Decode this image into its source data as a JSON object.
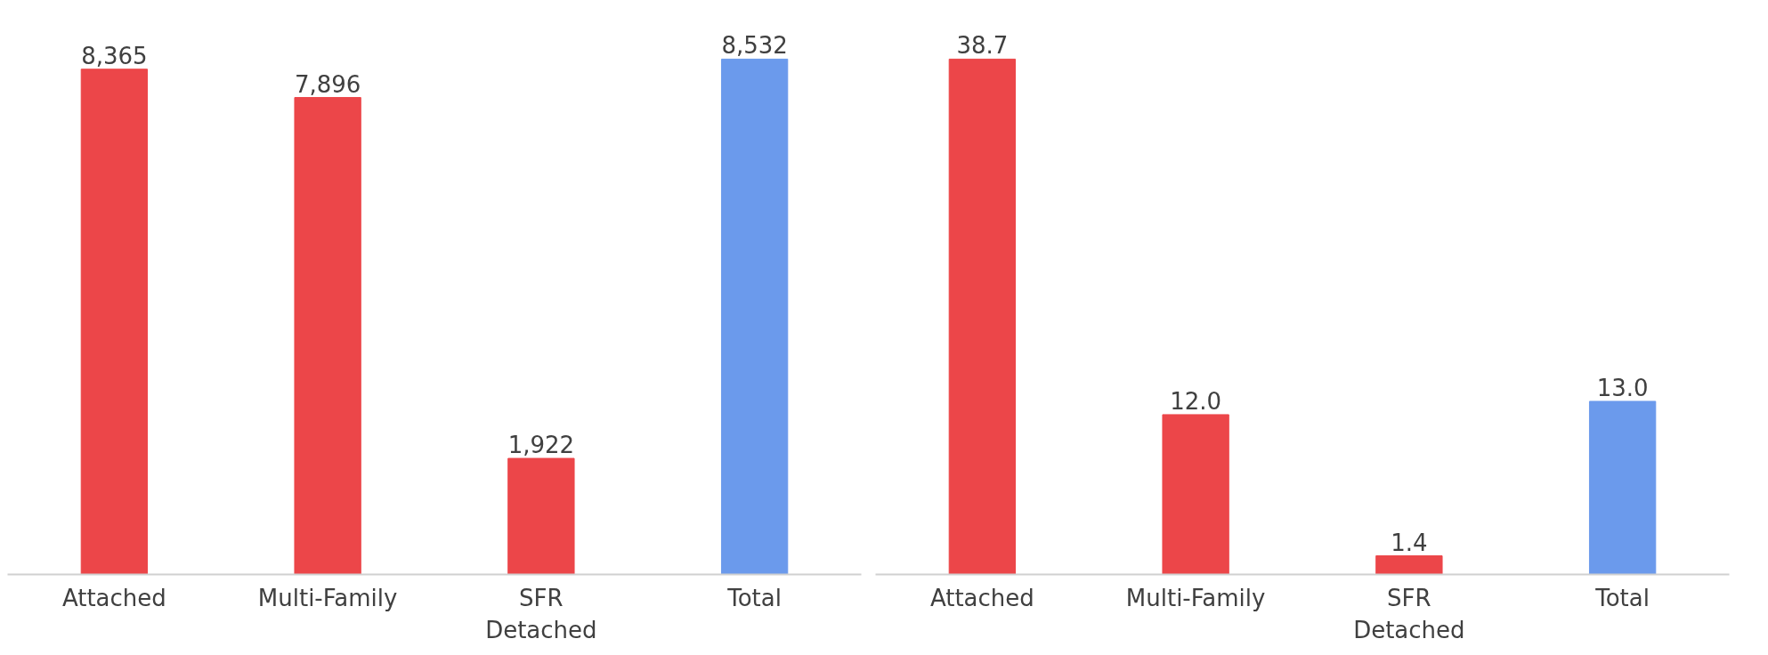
{
  "chart_data": [
    {
      "type": "bar",
      "categories": [
        "Attached",
        "Multi-Family",
        "SFR Detached",
        "Total"
      ],
      "values": [
        8365,
        7896,
        1922,
        8532
      ],
      "colors": [
        "#ec4649",
        "#ec4649",
        "#ec4649",
        "#6b9aec"
      ],
      "value_labels": [
        "8,365",
        "7,896",
        "1,922",
        "8,532"
      ],
      "grid": false
    },
    {
      "type": "bar",
      "categories": [
        "Attached",
        "Multi-Family",
        "SFR Detached",
        "Total"
      ],
      "values": [
        38.7,
        12.0,
        1.4,
        13.0
      ],
      "colors": [
        "#ec4649",
        "#ec4649",
        "#ec4649",
        "#6b9aec"
      ],
      "value_labels": [
        "38.7",
        "12.0",
        "1.4",
        "13.0"
      ],
      "grid": false
    }
  ]
}
